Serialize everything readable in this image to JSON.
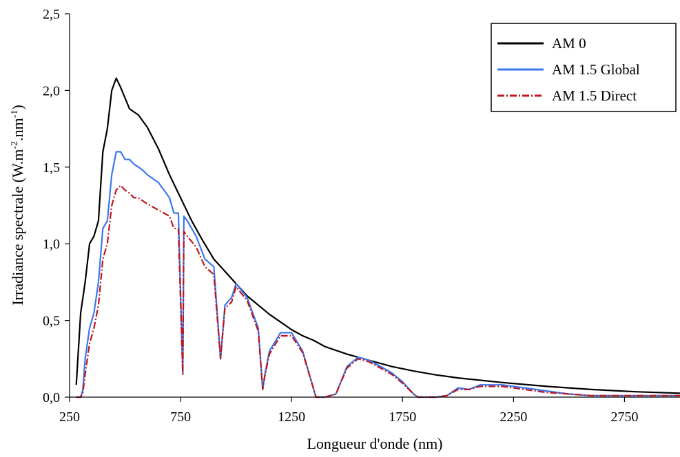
{
  "chart_data": {
    "type": "line",
    "xlabel": "Longueur d'onde (nm)",
    "ylabel": "Irradiance spectrale (W.m",
    "ylabel_sup1": "-2",
    "ylabel_mid": ".nm",
    "ylabel_sup2": "-1",
    "ylabel_end": ")",
    "xlim": [
      250,
      3000
    ],
    "ylim": [
      0,
      2.5
    ],
    "xticks": [
      250,
      750,
      1250,
      1750,
      2250,
      2750
    ],
    "xtick_labels": [
      "250",
      "750",
      "1250",
      "1750",
      "2250",
      "2750"
    ],
    "yticks": [
      0,
      0.5,
      1.0,
      1.5,
      2.0,
      2.5
    ],
    "ytick_labels": [
      "0,0",
      "0,5",
      "1,0",
      "1,5",
      "2,0",
      "2,5"
    ],
    "grid": false,
    "legend_position": "top-right",
    "series": [
      {
        "name": "AM 0",
        "color": "#000000",
        "dash": "solid",
        "x": [
          280,
          300,
          320,
          340,
          360,
          380,
          400,
          420,
          440,
          460,
          480,
          500,
          520,
          540,
          560,
          580,
          600,
          650,
          700,
          750,
          800,
          850,
          900,
          950,
          1000,
          1050,
          1100,
          1150,
          1200,
          1250,
          1300,
          1350,
          1400,
          1500,
          1600,
          1700,
          1800,
          1900,
          2000,
          2200,
          2400,
          2600,
          2800,
          3000
        ],
        "y": [
          0.08,
          0.55,
          0.75,
          1.0,
          1.05,
          1.15,
          1.6,
          1.75,
          2.0,
          2.08,
          2.02,
          1.95,
          1.88,
          1.86,
          1.84,
          1.8,
          1.76,
          1.62,
          1.45,
          1.3,
          1.15,
          1.02,
          0.9,
          0.82,
          0.74,
          0.66,
          0.6,
          0.54,
          0.49,
          0.44,
          0.4,
          0.37,
          0.33,
          0.28,
          0.24,
          0.2,
          0.17,
          0.145,
          0.125,
          0.095,
          0.07,
          0.05,
          0.035,
          0.025
        ]
      },
      {
        "name": "AM 1.5 Global",
        "color": "#3b78f0",
        "dash": "solid",
        "x": [
          280,
          300,
          310,
          320,
          340,
          360,
          380,
          400,
          420,
          440,
          460,
          480,
          500,
          520,
          540,
          560,
          580,
          600,
          650,
          700,
          720,
          740,
          760,
          765,
          780,
          820,
          860,
          900,
          930,
          950,
          980,
          1000,
          1050,
          1100,
          1120,
          1130,
          1150,
          1200,
          1250,
          1300,
          1350,
          1360,
          1400,
          1450,
          1500,
          1550,
          1600,
          1650,
          1700,
          1750,
          1800,
          1820,
          1900,
          1950,
          2000,
          2050,
          2100,
          2200,
          2300,
          2400,
          2500,
          2600,
          2700,
          2800,
          3000
        ],
        "y": [
          0.0,
          0.0,
          0.05,
          0.25,
          0.45,
          0.55,
          0.75,
          1.1,
          1.15,
          1.45,
          1.6,
          1.6,
          1.55,
          1.55,
          1.52,
          1.5,
          1.48,
          1.45,
          1.4,
          1.3,
          1.2,
          1.2,
          0.15,
          1.18,
          1.15,
          1.05,
          0.9,
          0.85,
          0.25,
          0.6,
          0.65,
          0.74,
          0.65,
          0.45,
          0.05,
          0.15,
          0.3,
          0.42,
          0.42,
          0.3,
          0.05,
          0.0,
          0.0,
          0.02,
          0.2,
          0.26,
          0.24,
          0.2,
          0.16,
          0.1,
          0.02,
          0.0,
          0.0,
          0.01,
          0.06,
          0.05,
          0.08,
          0.08,
          0.06,
          0.04,
          0.02,
          0.01,
          0.01,
          0.01,
          0.01
        ]
      },
      {
        "name": "AM 1.5 Direct",
        "color": "#c0141e",
        "dash": "dash-dot",
        "x": [
          280,
          300,
          310,
          320,
          340,
          360,
          380,
          400,
          420,
          440,
          460,
          480,
          500,
          520,
          540,
          560,
          580,
          600,
          650,
          700,
          720,
          740,
          760,
          765,
          780,
          820,
          860,
          900,
          930,
          950,
          980,
          1000,
          1050,
          1100,
          1120,
          1130,
          1150,
          1200,
          1250,
          1300,
          1350,
          1360,
          1400,
          1450,
          1500,
          1550,
          1600,
          1650,
          1700,
          1750,
          1800,
          1820,
          1900,
          1950,
          2000,
          2050,
          2100,
          2200,
          2300,
          2400,
          2500,
          2600,
          2700,
          2800,
          3000
        ],
        "y": [
          0.0,
          0.0,
          0.03,
          0.15,
          0.35,
          0.45,
          0.6,
          0.9,
          1.0,
          1.25,
          1.35,
          1.38,
          1.35,
          1.33,
          1.3,
          1.3,
          1.28,
          1.26,
          1.22,
          1.18,
          1.1,
          1.1,
          0.15,
          1.08,
          1.05,
          0.98,
          0.85,
          0.8,
          0.25,
          0.58,
          0.62,
          0.72,
          0.63,
          0.43,
          0.05,
          0.14,
          0.28,
          0.4,
          0.4,
          0.29,
          0.05,
          0.0,
          0.0,
          0.02,
          0.19,
          0.25,
          0.23,
          0.19,
          0.15,
          0.09,
          0.02,
          0.0,
          0.0,
          0.01,
          0.05,
          0.05,
          0.07,
          0.07,
          0.05,
          0.03,
          0.02,
          0.01,
          0.01,
          0.01,
          0.01
        ]
      }
    ]
  }
}
